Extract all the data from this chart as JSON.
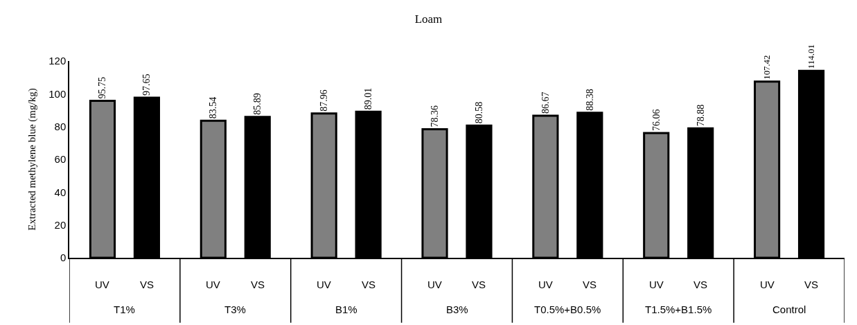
{
  "chart_data": {
    "type": "bar",
    "title": "Loam",
    "ylabel": "Extracted methylene blue (mg/kg)",
    "categories": [
      "T1%",
      "T3%",
      "B1%",
      "B3%",
      "T0.5%+B0.5%",
      "T1.5%+B1.5%",
      "Control"
    ],
    "series": [
      {
        "name": "UV",
        "color": "#808080",
        "values": [
          95.75,
          83.54,
          87.96,
          78.36,
          86.67,
          76.06,
          107.42
        ]
      },
      {
        "name": "VS",
        "color": "#000000",
        "values": [
          97.65,
          85.89,
          89.01,
          80.58,
          88.38,
          78.88,
          114.01
        ]
      }
    ],
    "ylim": [
      0,
      120
    ],
    "yticks": [
      0,
      20,
      40,
      60,
      80,
      100,
      120
    ],
    "legend": false,
    "data_labels": true
  }
}
